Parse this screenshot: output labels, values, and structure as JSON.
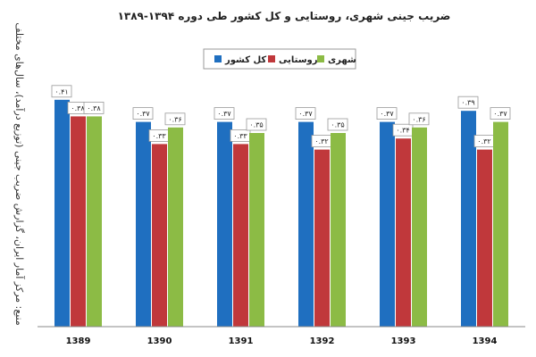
{
  "chart_data": {
    "type": "bar",
    "title": "ضریب جینی شهری، روستایی و کل کشور طی دوره ۱۳۹۴-۱۳۸۹",
    "source": "منبع: مرکز آمار ایران، گزارش ضریب جینی (توزیع درآمد)، سال‌های مختلف",
    "categories": [
      "1389",
      "1390",
      "1391",
      "1392",
      "1393",
      "1394"
    ],
    "series": [
      {
        "name": "کل کشور",
        "color": "#1f6fc0",
        "values": [
          0.41,
          0.37,
          0.37,
          0.37,
          0.37,
          0.39
        ],
        "labels": [
          "۰.۴۱",
          "۰.۳۷",
          "۰.۳۷",
          "۰.۳۷",
          "۰.۳۷",
          "۰.۳۹"
        ]
      },
      {
        "name": "روستایی",
        "color": "#c0383b",
        "values": [
          0.38,
          0.33,
          0.33,
          0.32,
          0.34,
          0.32
        ],
        "labels": [
          "۰.۳۸",
          "۰.۳۳",
          "۰.۳۳",
          "۰.۳۲",
          "۰.۳۴",
          "۰.۳۲"
        ]
      },
      {
        "name": "شهری",
        "color": "#8cbb45",
        "values": [
          0.38,
          0.36,
          0.35,
          0.35,
          0.36,
          0.37
        ],
        "labels": [
          "۰.۳۸",
          "۰.۳۶",
          "۰.۳۵",
          "۰.۳۵",
          "۰.۳۶",
          "۰.۳۷"
        ]
      }
    ],
    "legend_order": [
      "کل کشور",
      "روستایی",
      "شهری"
    ],
    "legend_position": "top-center",
    "ylim": [
      0,
      0.45
    ],
    "grid": false
  }
}
